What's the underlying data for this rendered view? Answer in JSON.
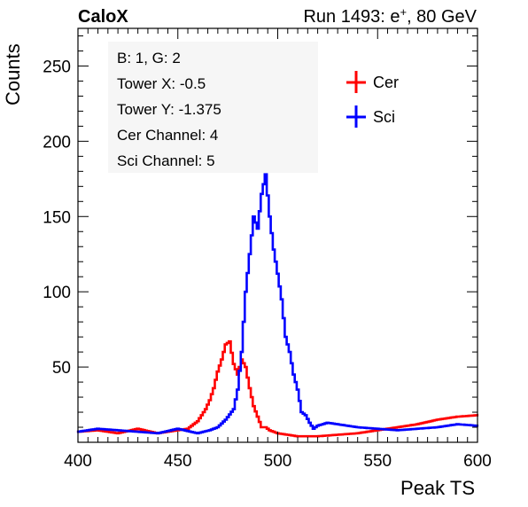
{
  "header": {
    "left": "CaloX",
    "right_prefix": "Run 1493: e",
    "right_sup": "+",
    "right_suffix": ", 80 GeV"
  },
  "info_box": {
    "lines": [
      "B: 1, G: 2",
      "Tower X: -0.5",
      "Tower Y: -1.375",
      "Cer Channel: 4",
      "Sci Channel: 5"
    ]
  },
  "colors": {
    "cer": "#ff0000",
    "sci": "#0000ff",
    "frame": "#000000"
  },
  "chart_data": {
    "type": "line",
    "xlabel": "Peak TS",
    "ylabel": "Counts",
    "xlim": [
      400,
      600
    ],
    "ylim": [
      0,
      275
    ],
    "x_ticks": [
      400,
      450,
      500,
      550,
      600
    ],
    "y_ticks": [
      50,
      100,
      150,
      200,
      250
    ],
    "grid": false,
    "legend": "top-right",
    "series": [
      {
        "name": "Cer",
        "color": "#ff0000",
        "step": "mid",
        "x": [
          400,
          410,
          420,
          430,
          440,
          450,
          455,
          460,
          464,
          466,
          468,
          470,
          472,
          474,
          476,
          478,
          480,
          482,
          484,
          486,
          488,
          490,
          492,
          494,
          496,
          498,
          500,
          505,
          510,
          515,
          520,
          530,
          540,
          550,
          560,
          570,
          580,
          590,
          600
        ],
        "y": [
          7,
          8,
          6,
          9,
          6,
          8,
          9,
          14,
          22,
          28,
          36,
          47,
          55,
          65,
          67,
          52,
          45,
          55,
          50,
          36,
          24,
          17,
          10,
          10,
          8,
          7,
          6,
          5,
          4,
          4,
          4,
          5,
          6,
          8,
          10,
          12,
          15,
          17,
          18
        ]
      },
      {
        "name": "Sci",
        "color": "#0000ff",
        "step": "mid",
        "x": [
          400,
          410,
          420,
          430,
          440,
          450,
          460,
          466,
          470,
          474,
          478,
          480,
          482,
          484,
          486,
          488,
          490,
          492,
          494,
          496,
          498,
          500,
          502,
          504,
          506,
          508,
          510,
          512,
          514,
          516,
          518,
          520,
          525,
          530,
          540,
          550,
          560,
          570,
          580,
          590,
          600
        ],
        "y": [
          7,
          9,
          8,
          7,
          6,
          9,
          6,
          8,
          10,
          15,
          22,
          35,
          60,
          100,
          125,
          150,
          142,
          165,
          178,
          150,
          128,
          112,
          95,
          70,
          60,
          45,
          35,
          20,
          18,
          13,
          9,
          11,
          13,
          12,
          10,
          9,
          8,
          9,
          10,
          12,
          11
        ]
      }
    ]
  }
}
